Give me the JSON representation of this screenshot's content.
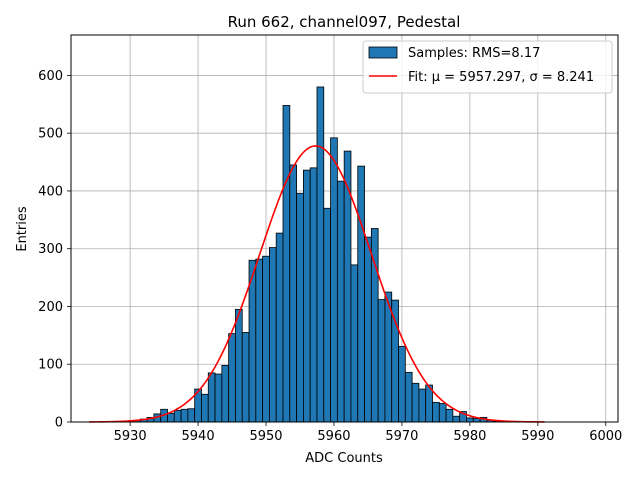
{
  "chart_data": {
    "type": "bar",
    "title": "Run 662, channel097, Pedestal",
    "xlabel": "ADC Counts",
    "ylabel": "Entries",
    "xlim": [
      5921.3,
      6001.8
    ],
    "ylim": [
      0,
      670
    ],
    "xticks": [
      5930,
      5940,
      5950,
      5960,
      5970,
      5980,
      5990,
      6000
    ],
    "yticks": [
      0,
      100,
      200,
      300,
      400,
      500,
      600
    ],
    "grid": true,
    "legend_position": "top-right",
    "bin_width": 1,
    "bins": [
      {
        "x": 5931,
        "y": 3
      },
      {
        "x": 5932,
        "y": 5
      },
      {
        "x": 5933,
        "y": 8
      },
      {
        "x": 5934,
        "y": 14
      },
      {
        "x": 5935,
        "y": 22
      },
      {
        "x": 5936,
        "y": 15
      },
      {
        "x": 5937,
        "y": 20
      },
      {
        "x": 5938,
        "y": 22
      },
      {
        "x": 5939,
        "y": 23
      },
      {
        "x": 5940,
        "y": 57
      },
      {
        "x": 5941,
        "y": 48
      },
      {
        "x": 5942,
        "y": 85
      },
      {
        "x": 5943,
        "y": 83
      },
      {
        "x": 5944,
        "y": 98
      },
      {
        "x": 5945,
        "y": 153
      },
      {
        "x": 5946,
        "y": 195
      },
      {
        "x": 5947,
        "y": 155
      },
      {
        "x": 5948,
        "y": 280
      },
      {
        "x": 5949,
        "y": 282
      },
      {
        "x": 5950,
        "y": 287
      },
      {
        "x": 5951,
        "y": 302
      },
      {
        "x": 5952,
        "y": 327
      },
      {
        "x": 5953,
        "y": 548
      },
      {
        "x": 5954,
        "y": 445
      },
      {
        "x": 5955,
        "y": 396
      },
      {
        "x": 5956,
        "y": 436
      },
      {
        "x": 5957,
        "y": 440
      },
      {
        "x": 5958,
        "y": 580
      },
      {
        "x": 5959,
        "y": 370
      },
      {
        "x": 5960,
        "y": 492
      },
      {
        "x": 5961,
        "y": 417
      },
      {
        "x": 5962,
        "y": 469
      },
      {
        "x": 5963,
        "y": 272
      },
      {
        "x": 5964,
        "y": 443
      },
      {
        "x": 5965,
        "y": 320
      },
      {
        "x": 5966,
        "y": 335
      },
      {
        "x": 5967,
        "y": 212
      },
      {
        "x": 5968,
        "y": 225
      },
      {
        "x": 5969,
        "y": 211
      },
      {
        "x": 5970,
        "y": 131
      },
      {
        "x": 5971,
        "y": 86
      },
      {
        "x": 5972,
        "y": 67
      },
      {
        "x": 5973,
        "y": 57
      },
      {
        "x": 5974,
        "y": 64
      },
      {
        "x": 5975,
        "y": 34
      },
      {
        "x": 5976,
        "y": 32
      },
      {
        "x": 5977,
        "y": 22
      },
      {
        "x": 5978,
        "y": 10
      },
      {
        "x": 5979,
        "y": 18
      },
      {
        "x": 5980,
        "y": 7
      },
      {
        "x": 5981,
        "y": 6
      },
      {
        "x": 5982,
        "y": 8
      },
      {
        "x": 5983,
        "y": 3
      },
      {
        "x": 5984,
        "y": 1
      }
    ],
    "fit": {
      "mu": 5957.297,
      "sigma": 8.241,
      "amplitude": 478,
      "x_range": [
        5924,
        5991
      ]
    },
    "series": [
      {
        "name": "Samples: RMS=8.17",
        "kind": "histogram",
        "color": "#1f77b4",
        "edgecolor": "#000000"
      },
      {
        "name": "Fit: μ = 5957.297, σ = 8.241",
        "kind": "line",
        "color": "#ff0000"
      }
    ]
  }
}
